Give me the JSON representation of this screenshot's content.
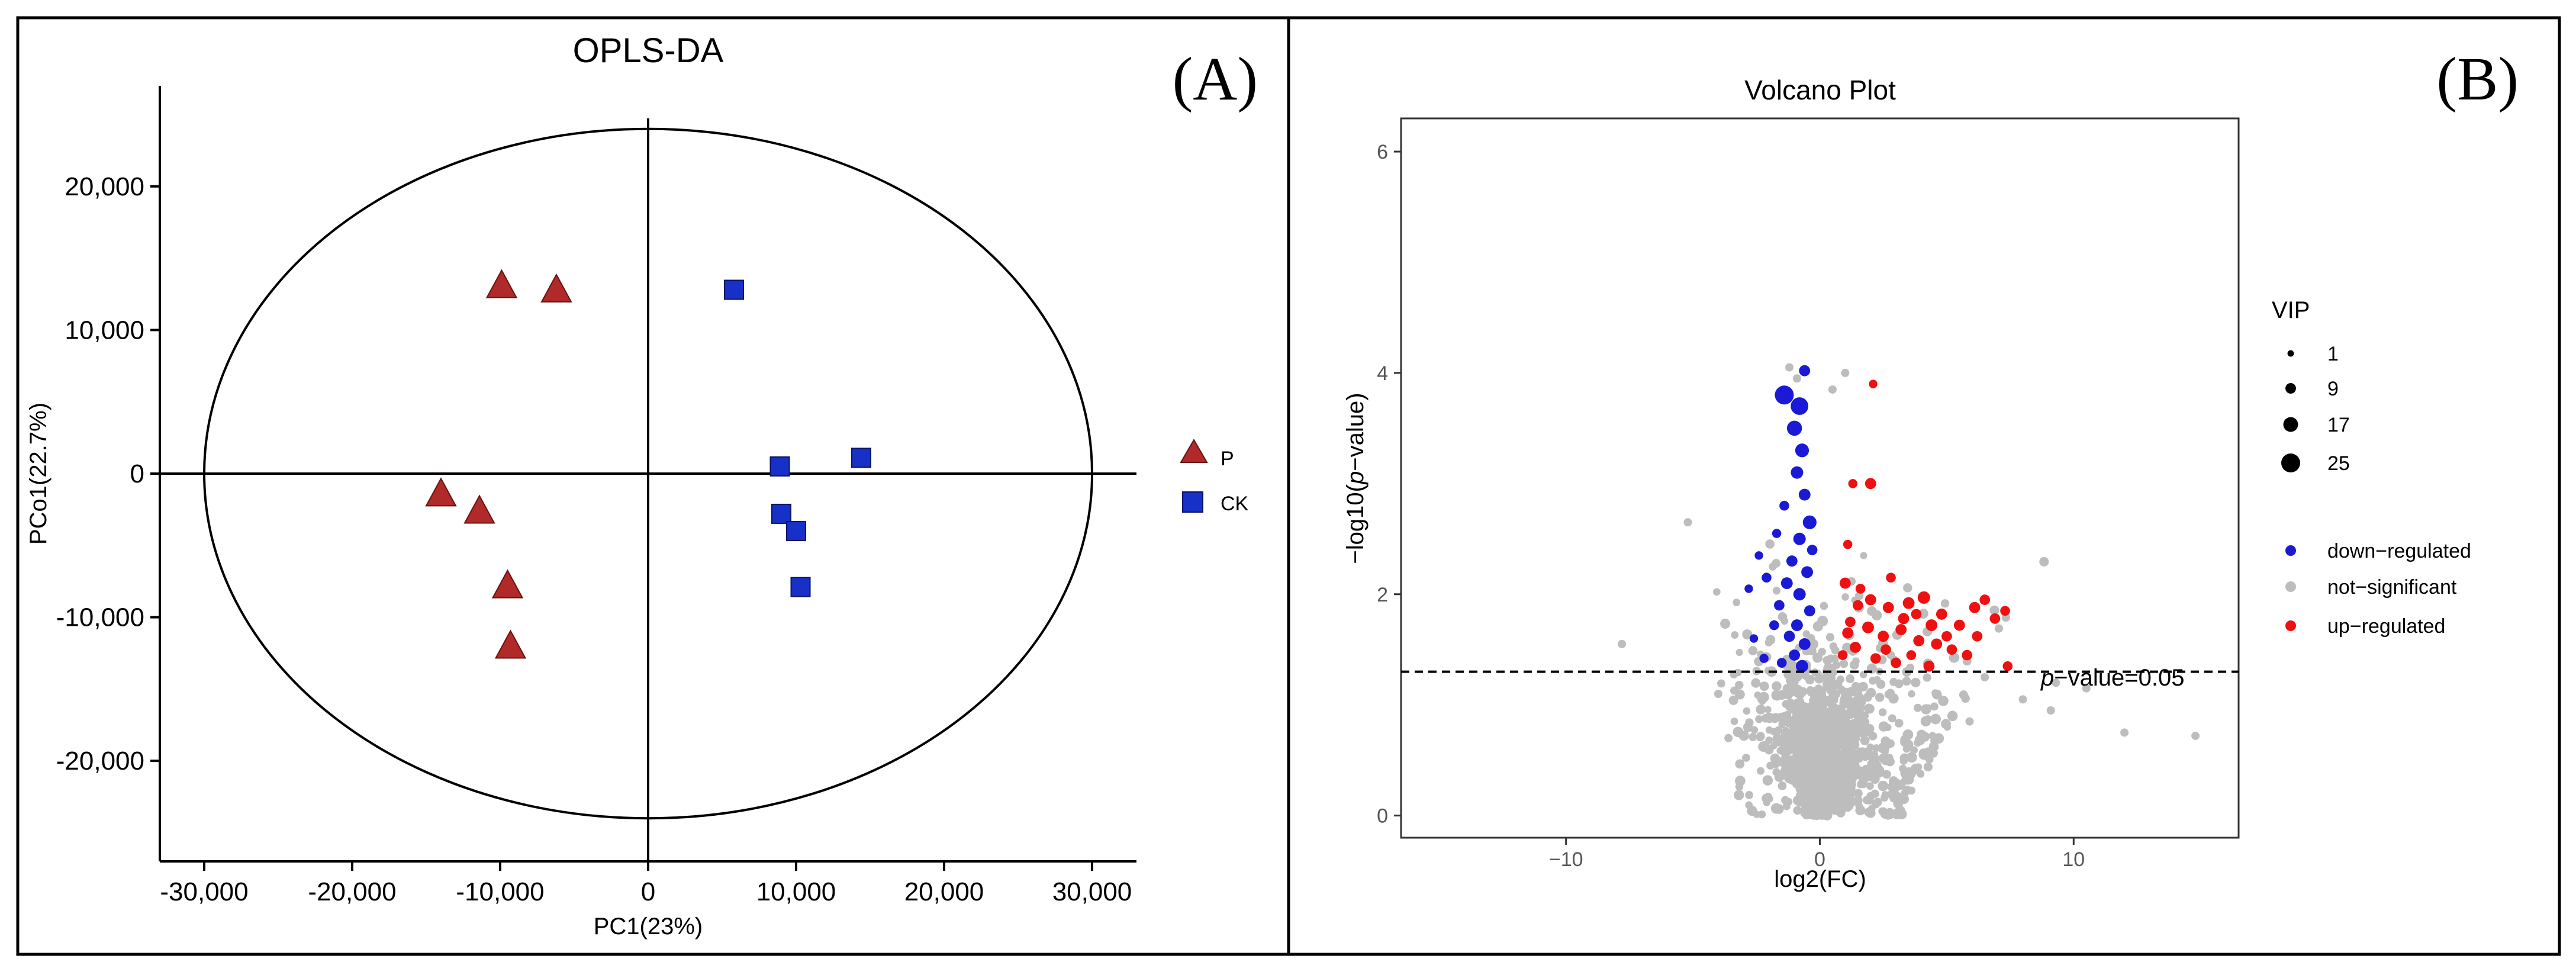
{
  "panel_labels": {
    "a": "(A)",
    "b": "(B)"
  },
  "colors": {
    "p_fill": "#b02a2a",
    "p_stroke": "#6a1010",
    "ck_fill": "#1730c8",
    "ck_stroke": "#0a1366",
    "down": "#1a1ad6",
    "ns": "#bdbdbd",
    "up": "#ee1111"
  },
  "chart_data": [
    {
      "type": "scatter",
      "title": "OPLS-DA",
      "xlabel": "PC1(23%)",
      "ylabel": "PCo1(22.7%)",
      "xlim": [
        -33000,
        33000
      ],
      "ylim": [
        -27000,
        27000
      ],
      "xticks": [
        -30000,
        -20000,
        -10000,
        0,
        10000,
        20000,
        30000
      ],
      "xtick_labels": [
        "-30,000",
        "-20,000",
        "-10,000",
        "0",
        "10,000",
        "20,000",
        "30,000"
      ],
      "yticks": [
        -20000,
        -10000,
        0,
        10000,
        20000
      ],
      "ytick_labels": [
        "-20,000",
        "-10,000",
        "0",
        "10,000",
        "20,000"
      ],
      "ellipse": {
        "cx": 0,
        "cy": 0,
        "rx": 30000,
        "ry": 24000
      },
      "legend_position": "right",
      "series": [
        {
          "name": "P",
          "marker": "triangle",
          "points": [
            [
              -9900,
              13000
            ],
            [
              -6200,
              12700
            ],
            [
              -14000,
              -1500
            ],
            [
              -11400,
              -2700
            ],
            [
              -9500,
              -7900
            ],
            [
              -9300,
              -12100
            ]
          ]
        },
        {
          "name": "CK",
          "marker": "square",
          "points": [
            [
              5800,
              12800
            ],
            [
              14400,
              1100
            ],
            [
              8900,
              500
            ],
            [
              9000,
              -2800
            ],
            [
              10000,
              -4000
            ],
            [
              10300,
              -7900
            ]
          ]
        }
      ]
    },
    {
      "type": "scatter",
      "title": "Volcano Plot",
      "xlabel": "log2(FC)",
      "ylabel": "-log10(p-value)",
      "ylabel_prefix": "−log10(",
      "ylabel_italic": "p",
      "ylabel_suffix": "−value)",
      "xlim": [
        -16.5,
        16.5
      ],
      "ylim": [
        -0.2,
        6.3
      ],
      "xticks": [
        -10,
        0,
        10
      ],
      "xtick_labels": [
        "−10",
        "0",
        "10"
      ],
      "yticks": [
        0,
        2,
        4,
        6
      ],
      "ytick_labels": [
        "0",
        "2",
        "4",
        "6"
      ],
      "threshold": 1.3,
      "threshold_label_italic": "p",
      "threshold_label_rest": "−value=0.05",
      "size_legend_title": "VIP",
      "size_legend": [
        {
          "label": "1",
          "vip": 1
        },
        {
          "label": "9",
          "vip": 9
        },
        {
          "label": "17",
          "vip": 17
        },
        {
          "label": "25",
          "vip": 25
        }
      ],
      "color_legend": [
        {
          "key": "down",
          "label": "down−regulated"
        },
        {
          "key": "ns",
          "label": "not−significant"
        },
        {
          "key": "up",
          "label": "up−regulated"
        }
      ],
      "series": [
        {
          "name": "down-regulated",
          "key": "down",
          "points": [
            [
              -1.4,
              3.8,
              20
            ],
            [
              -0.8,
              3.7,
              18
            ],
            [
              -0.6,
              4.02,
              8
            ],
            [
              -1.0,
              3.5,
              14
            ],
            [
              -0.7,
              3.3,
              12
            ],
            [
              -0.9,
              3.1,
              10
            ],
            [
              -0.6,
              2.9,
              9
            ],
            [
              -0.4,
              2.65,
              12
            ],
            [
              -0.8,
              2.5,
              10
            ],
            [
              -1.1,
              2.3,
              8
            ],
            [
              -0.5,
              2.2,
              9
            ],
            [
              -1.3,
              2.1,
              9
            ],
            [
              -0.8,
              2.0,
              10
            ],
            [
              -1.6,
              1.9,
              7
            ],
            [
              -2.1,
              2.15,
              6
            ],
            [
              -0.4,
              1.85,
              8
            ],
            [
              -0.9,
              1.72,
              9
            ],
            [
              -1.2,
              1.62,
              8
            ],
            [
              -1.8,
              1.72,
              6
            ],
            [
              -2.6,
              1.6,
              4
            ],
            [
              -0.6,
              1.55,
              9
            ],
            [
              -1.0,
              1.45,
              8
            ],
            [
              -2.2,
              1.42,
              5
            ],
            [
              -1.5,
              1.38,
              6
            ],
            [
              -0.7,
              1.35,
              10
            ],
            [
              -2.8,
              2.05,
              4
            ],
            [
              -2.4,
              2.35,
              4
            ],
            [
              -1.7,
              2.55,
              5
            ],
            [
              -0.3,
              2.4,
              7
            ],
            [
              -1.4,
              2.8,
              6
            ]
          ]
        },
        {
          "name": "up-regulated",
          "key": "up",
          "points": [
            [
              2.1,
              3.9,
              4
            ],
            [
              2.0,
              3.0,
              8
            ],
            [
              1.3,
              3.0,
              5
            ],
            [
              1.1,
              2.45,
              5
            ],
            [
              1.0,
              2.1,
              8
            ],
            [
              1.6,
              2.05,
              6
            ],
            [
              2.0,
              1.95,
              8
            ],
            [
              2.7,
              1.88,
              8
            ],
            [
              3.5,
              1.92,
              9
            ],
            [
              4.1,
              1.97,
              10
            ],
            [
              4.8,
              1.82,
              8
            ],
            [
              5.5,
              1.72,
              8
            ],
            [
              6.1,
              1.88,
              8
            ],
            [
              6.5,
              1.95,
              7
            ],
            [
              6.9,
              1.78,
              7
            ],
            [
              7.3,
              1.85,
              6
            ],
            [
              1.2,
              1.75,
              7
            ],
            [
              1.9,
              1.7,
              9
            ],
            [
              2.5,
              1.62,
              8
            ],
            [
              3.2,
              1.68,
              8
            ],
            [
              3.9,
              1.58,
              8
            ],
            [
              4.6,
              1.55,
              8
            ],
            [
              5.2,
              1.5,
              7
            ],
            [
              5.8,
              1.45,
              7
            ],
            [
              6.2,
              1.62,
              7
            ],
            [
              1.4,
              1.52,
              8
            ],
            [
              2.2,
              1.42,
              7
            ],
            [
              3.0,
              1.38,
              7
            ],
            [
              3.6,
              1.45,
              6
            ],
            [
              4.3,
              1.35,
              8
            ],
            [
              7.4,
              1.35,
              6
            ],
            [
              0.9,
              1.45,
              6
            ],
            [
              2.8,
              2.15,
              6
            ],
            [
              1.5,
              1.9,
              7
            ],
            [
              3.3,
              1.78,
              8
            ],
            [
              4.4,
              1.72,
              9
            ],
            [
              5.0,
              1.62,
              7
            ],
            [
              1.1,
              1.65,
              8
            ],
            [
              2.6,
              1.5,
              7
            ],
            [
              3.8,
              1.82,
              7
            ]
          ]
        }
      ]
    }
  ]
}
